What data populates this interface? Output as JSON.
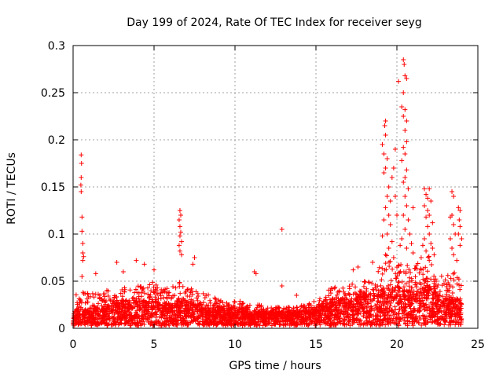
{
  "chart_data": {
    "type": "scatter",
    "title": "Day 199 of 2024, Rate Of TEC Index for receiver seyg",
    "xlabel": "GPS time / hours",
    "ylabel": "ROTI / TECUs",
    "xlim": [
      0,
      25
    ],
    "ylim": [
      0,
      0.3
    ],
    "x_ticks": [
      "0",
      "5",
      "10",
      "15",
      "20",
      "25"
    ],
    "y_ticks": [
      "0",
      "0.05",
      "0.1",
      "0.15",
      "0.2",
      "0.25",
      "0.3"
    ],
    "grid": true,
    "marker": "plus",
    "color": "#ff0000",
    "baseline_profile": [
      [
        0.0,
        0.012,
        0.03
      ],
      [
        0.5,
        0.015,
        0.045
      ],
      [
        1.0,
        0.012,
        0.035
      ],
      [
        1.5,
        0.015,
        0.04
      ],
      [
        2.0,
        0.015,
        0.04
      ],
      [
        2.5,
        0.02,
        0.048
      ],
      [
        3.0,
        0.02,
        0.045
      ],
      [
        3.5,
        0.02,
        0.042
      ],
      [
        4.0,
        0.02,
        0.045
      ],
      [
        4.5,
        0.02,
        0.045
      ],
      [
        5.0,
        0.02,
        0.05
      ],
      [
        5.5,
        0.018,
        0.04
      ],
      [
        6.0,
        0.018,
        0.045
      ],
      [
        6.5,
        0.02,
        0.05
      ],
      [
        7.0,
        0.02,
        0.045
      ],
      [
        7.5,
        0.018,
        0.04
      ],
      [
        8.0,
        0.018,
        0.038
      ],
      [
        8.5,
        0.015,
        0.035
      ],
      [
        9.0,
        0.015,
        0.03
      ],
      [
        9.5,
        0.015,
        0.028
      ],
      [
        10.0,
        0.015,
        0.03
      ],
      [
        10.5,
        0.015,
        0.03
      ],
      [
        11.0,
        0.012,
        0.025
      ],
      [
        11.5,
        0.012,
        0.025
      ],
      [
        12.0,
        0.012,
        0.022
      ],
      [
        12.5,
        0.012,
        0.022
      ],
      [
        13.0,
        0.012,
        0.025
      ],
      [
        13.5,
        0.012,
        0.022
      ],
      [
        14.0,
        0.012,
        0.025
      ],
      [
        14.5,
        0.015,
        0.028
      ],
      [
        15.0,
        0.015,
        0.03
      ],
      [
        15.5,
        0.018,
        0.035
      ],
      [
        16.0,
        0.02,
        0.045
      ],
      [
        16.5,
        0.022,
        0.045
      ],
      [
        17.0,
        0.022,
        0.048
      ],
      [
        17.5,
        0.022,
        0.048
      ],
      [
        18.0,
        0.025,
        0.05
      ],
      [
        18.5,
        0.025,
        0.055
      ],
      [
        19.0,
        0.028,
        0.07
      ],
      [
        19.5,
        0.03,
        0.08
      ],
      [
        20.0,
        0.03,
        0.08
      ],
      [
        20.5,
        0.028,
        0.07
      ],
      [
        21.0,
        0.025,
        0.06
      ],
      [
        21.5,
        0.03,
        0.08
      ],
      [
        22.0,
        0.03,
        0.08
      ],
      [
        22.5,
        0.025,
        0.06
      ],
      [
        23.0,
        0.022,
        0.055
      ],
      [
        23.5,
        0.022,
        0.06
      ],
      [
        24.0,
        0.02,
        0.05
      ]
    ],
    "outliers": [
      [
        0.5,
        0.184
      ],
      [
        0.52,
        0.175
      ],
      [
        0.5,
        0.16
      ],
      [
        0.48,
        0.152
      ],
      [
        0.5,
        0.145
      ],
      [
        0.55,
        0.118
      ],
      [
        0.55,
        0.103
      ],
      [
        0.6,
        0.09
      ],
      [
        0.6,
        0.08
      ],
      [
        0.65,
        0.076
      ],
      [
        0.6,
        0.072
      ],
      [
        0.55,
        0.055
      ],
      [
        1.4,
        0.058
      ],
      [
        2.7,
        0.07
      ],
      [
        3.1,
        0.06
      ],
      [
        3.9,
        0.072
      ],
      [
        4.4,
        0.068
      ],
      [
        5.0,
        0.062
      ],
      [
        6.6,
        0.125
      ],
      [
        6.65,
        0.12
      ],
      [
        6.55,
        0.115
      ],
      [
        6.6,
        0.108
      ],
      [
        6.65,
        0.102
      ],
      [
        6.6,
        0.098
      ],
      [
        6.7,
        0.092
      ],
      [
        6.55,
        0.088
      ],
      [
        6.6,
        0.082
      ],
      [
        6.7,
        0.078
      ],
      [
        7.5,
        0.075
      ],
      [
        7.4,
        0.068
      ],
      [
        11.2,
        0.06
      ],
      [
        11.3,
        0.058
      ],
      [
        12.9,
        0.105
      ],
      [
        12.9,
        0.045
      ],
      [
        13.8,
        0.035
      ],
      [
        17.3,
        0.062
      ],
      [
        17.6,
        0.065
      ],
      [
        18.5,
        0.07
      ],
      [
        19.1,
        0.195
      ],
      [
        19.3,
        0.22
      ],
      [
        19.25,
        0.215
      ],
      [
        19.3,
        0.205
      ],
      [
        19.2,
        0.185
      ],
      [
        19.4,
        0.18
      ],
      [
        19.3,
        0.17
      ],
      [
        19.2,
        0.165
      ],
      [
        19.5,
        0.15
      ],
      [
        19.4,
        0.14
      ],
      [
        19.6,
        0.135
      ],
      [
        19.3,
        0.128
      ],
      [
        19.5,
        0.12
      ],
      [
        19.2,
        0.115
      ],
      [
        19.6,
        0.11
      ],
      [
        19.4,
        0.1
      ],
      [
        19.1,
        0.098
      ],
      [
        19.7,
        0.092
      ],
      [
        19.5,
        0.085
      ],
      [
        19.3,
        0.078
      ],
      [
        19.8,
        0.075
      ],
      [
        19.9,
        0.19
      ],
      [
        19.8,
        0.17
      ],
      [
        19.7,
        0.16
      ],
      [
        19.9,
        0.14
      ],
      [
        20.0,
        0.12
      ],
      [
        20.1,
        0.262
      ],
      [
        20.4,
        0.285
      ],
      [
        20.45,
        0.28
      ],
      [
        20.5,
        0.268
      ],
      [
        20.6,
        0.265
      ],
      [
        20.4,
        0.25
      ],
      [
        20.3,
        0.235
      ],
      [
        20.5,
        0.232
      ],
      [
        20.4,
        0.225
      ],
      [
        20.6,
        0.22
      ],
      [
        20.5,
        0.21
      ],
      [
        20.6,
        0.198
      ],
      [
        20.4,
        0.192
      ],
      [
        20.5,
        0.185
      ],
      [
        20.3,
        0.178
      ],
      [
        20.6,
        0.168
      ],
      [
        20.5,
        0.16
      ],
      [
        20.4,
        0.155
      ],
      [
        20.7,
        0.148
      ],
      [
        20.5,
        0.14
      ],
      [
        20.6,
        0.13
      ],
      [
        20.4,
        0.12
      ],
      [
        20.7,
        0.115
      ],
      [
        20.5,
        0.105
      ],
      [
        20.8,
        0.1
      ],
      [
        20.3,
        0.095
      ],
      [
        20.9,
        0.09
      ],
      [
        20.6,
        0.085
      ],
      [
        21.0,
        0.128
      ],
      [
        21.0,
        0.08
      ],
      [
        20.2,
        0.088
      ],
      [
        21.7,
        0.148
      ],
      [
        22.0,
        0.148
      ],
      [
        21.8,
        0.142
      ],
      [
        21.9,
        0.138
      ],
      [
        22.1,
        0.135
      ],
      [
        21.7,
        0.13
      ],
      [
        21.9,
        0.125
      ],
      [
        22.0,
        0.12
      ],
      [
        21.8,
        0.118
      ],
      [
        22.2,
        0.112
      ],
      [
        21.9,
        0.108
      ],
      [
        22.0,
        0.1
      ],
      [
        21.7,
        0.095
      ],
      [
        22.1,
        0.09
      ],
      [
        21.6,
        0.088
      ],
      [
        22.2,
        0.085
      ],
      [
        21.8,
        0.082
      ],
      [
        22.3,
        0.078
      ],
      [
        21.5,
        0.075
      ],
      [
        22.0,
        0.072
      ],
      [
        23.4,
        0.145
      ],
      [
        23.5,
        0.14
      ],
      [
        23.4,
        0.12
      ],
      [
        23.3,
        0.118
      ],
      [
        23.5,
        0.11
      ],
      [
        23.6,
        0.1
      ],
      [
        23.3,
        0.095
      ],
      [
        23.4,
        0.085
      ],
      [
        23.5,
        0.078
      ],
      [
        23.7,
        0.072
      ],
      [
        23.8,
        0.128
      ],
      [
        23.9,
        0.125
      ],
      [
        23.85,
        0.115
      ],
      [
        23.9,
        0.108
      ],
      [
        23.8,
        0.1
      ],
      [
        24.0,
        0.095
      ],
      [
        23.9,
        0.088
      ]
    ]
  }
}
